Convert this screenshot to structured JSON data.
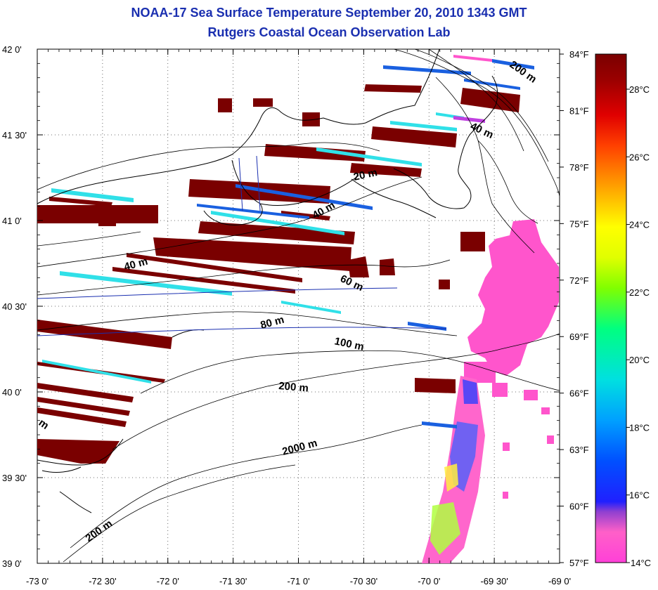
{
  "header": {
    "title": "NOAA-17 Sea Surface Temperature September 20, 2010 1343 GMT",
    "subtitle": "Rutgers Coastal Ocean Observation Lab"
  },
  "axes": {
    "lon_ticks": [
      "-73 0'",
      "-72 30'",
      "-72 0'",
      "-71 30'",
      "-71 0'",
      "-70 30'",
      "-70 0'",
      "-69 30'",
      "-69 0'"
    ],
    "lat_ticks": [
      "42 0'",
      "41 30'",
      "41 0'",
      "40 30'",
      "40 0'",
      "39 30'",
      "39 0'"
    ]
  },
  "colorbar": {
    "fahrenheit": [
      "84°F",
      "81°F",
      "78°F",
      "75°F",
      "72°F",
      "69°F",
      "66°F",
      "63°F",
      "60°F",
      "57°F"
    ],
    "celsius": [
      "28°C",
      "26°C",
      "24°C",
      "22°C",
      "20°C",
      "18°C",
      "16°C",
      "14°C"
    ]
  },
  "depth_labels": [
    "200 m",
    "40 m",
    "20 m",
    "40 m",
    "40 m",
    "60 m",
    "80 m",
    "100 m",
    "200 m",
    "2000 m",
    "200 m",
    "m"
  ],
  "colors": {
    "title": "#1a2fb0",
    "warm": "#7a0000",
    "cyan": "#30e0e8",
    "blue": "#1a60e0",
    "magenta": "#ff55cc"
  }
}
